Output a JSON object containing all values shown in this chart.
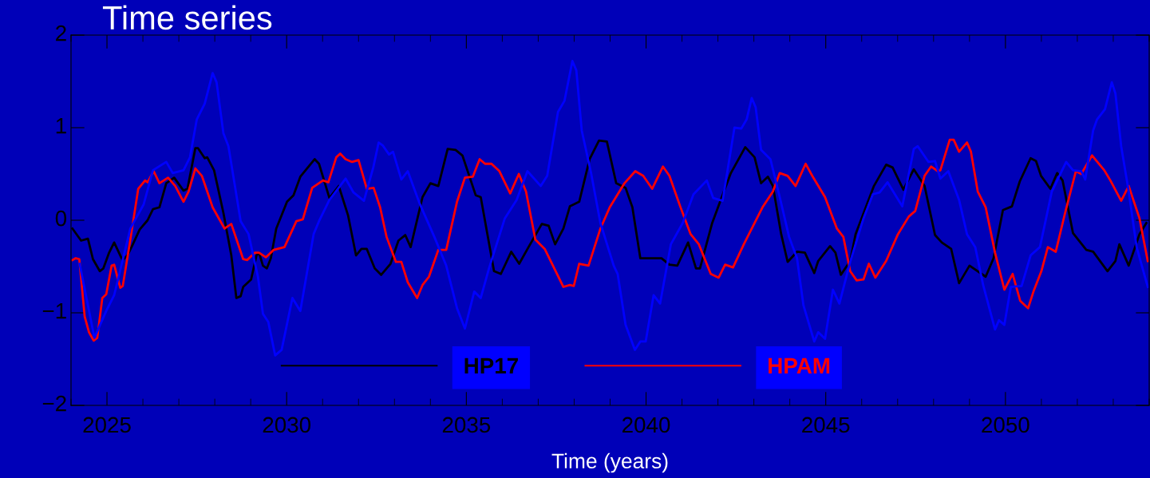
{
  "chart_data": {
    "type": "line",
    "title": "Time series",
    "xlabel": "Time (years)",
    "xlim": [
      2024,
      2054
    ],
    "ylim": [
      -2,
      2
    ],
    "xticks": [
      2025,
      2030,
      2035,
      2040,
      2045,
      2050
    ],
    "yticks": [
      -2,
      -1,
      0,
      1,
      2
    ],
    "legend": "bottom",
    "grid": false,
    "series": [
      {
        "name": "HP17",
        "color": "#000000",
        "x": [
          2024.04,
          2024.28,
          2024.47,
          2024.61,
          2024.8,
          2024.9,
          2025.06,
          2025.2,
          2025.43,
          2025.57,
          2025.72,
          2025.91,
          2026.13,
          2026.28,
          2026.46,
          2026.65,
          2026.87,
          2027.13,
          2027.24,
          2027.46,
          2027.53,
          2027.72,
          2027.79,
          2027.98,
          2028.24,
          2028.46,
          2028.6,
          2028.72,
          2028.79,
          2029.01,
          2029.16,
          2029.23,
          2029.34,
          2029.45,
          2029.56,
          2029.71,
          2030.01,
          2030.19,
          2030.38,
          2030.78,
          2030.9,
          2031.19,
          2031.45,
          2031.71,
          2031.93,
          2032.08,
          2032.23,
          2032.45,
          2032.63,
          2032.89,
          2033.11,
          2033.3,
          2033.45,
          2033.78,
          2034.0,
          2034.22,
          2034.48,
          2034.7,
          2034.89,
          2035.26,
          2035.4,
          2035.77,
          2035.96,
          2036.25,
          2036.47,
          2036.73,
          2037.1,
          2037.29,
          2037.47,
          2037.7,
          2037.88,
          2038.14,
          2038.43,
          2038.69,
          2038.91,
          2039.17,
          2039.43,
          2039.62,
          2039.84,
          2040.21,
          2040.43,
          2040.65,
          2040.87,
          2041.17,
          2041.39,
          2041.5,
          2041.84,
          2042.06,
          2042.36,
          2042.76,
          2043.02,
          2043.2,
          2043.39,
          2043.53,
          2043.76,
          2043.94,
          2044.2,
          2044.42,
          2044.68,
          2044.79,
          2045.12,
          2045.27,
          2045.42,
          2045.68,
          2045.83,
          2046.34,
          2046.68,
          2046.86,
          2047.16,
          2047.45,
          2047.75,
          2048.04,
          2048.23,
          2048.49,
          2048.71,
          2049.0,
          2049.45,
          2049.67,
          2049.93,
          2050.18,
          2050.4,
          2050.7,
          2050.85,
          2050.99,
          2051.25,
          2051.44,
          2051.59,
          2051.88,
          2052.25,
          2052.44,
          2052.84,
          2053.06,
          2053.17,
          2053.43,
          2053.73,
          2053.92
        ],
        "values": [
          -0.09,
          -0.22,
          -0.2,
          -0.42,
          -0.55,
          -0.52,
          -0.35,
          -0.24,
          -0.43,
          -0.38,
          -0.26,
          -0.1,
          0.0,
          0.12,
          0.14,
          0.4,
          0.46,
          0.32,
          0.34,
          0.78,
          0.78,
          0.67,
          0.68,
          0.54,
          0.08,
          -0.38,
          -0.84,
          -0.82,
          -0.72,
          -0.64,
          -0.38,
          -0.35,
          -0.49,
          -0.52,
          -0.41,
          -0.09,
          0.2,
          0.27,
          0.47,
          0.66,
          0.61,
          0.24,
          0.37,
          0.05,
          -0.38,
          -0.31,
          -0.31,
          -0.52,
          -0.59,
          -0.47,
          -0.22,
          -0.16,
          -0.29,
          0.25,
          0.4,
          0.37,
          0.77,
          0.76,
          0.7,
          0.27,
          0.25,
          -0.55,
          -0.58,
          -0.34,
          -0.47,
          -0.29,
          -0.04,
          -0.06,
          -0.26,
          -0.09,
          0.15,
          0.2,
          0.66,
          0.86,
          0.85,
          0.4,
          0.35,
          0.14,
          -0.41,
          -0.41,
          -0.41,
          -0.48,
          -0.49,
          -0.24,
          -0.52,
          -0.52,
          -0.03,
          0.2,
          0.51,
          0.79,
          0.68,
          0.4,
          0.47,
          0.37,
          -0.15,
          -0.45,
          -0.34,
          -0.35,
          -0.57,
          -0.44,
          -0.28,
          -0.35,
          -0.59,
          -0.44,
          -0.15,
          0.37,
          0.6,
          0.57,
          0.33,
          0.55,
          0.37,
          -0.16,
          -0.24,
          -0.31,
          -0.68,
          -0.49,
          -0.61,
          -0.41,
          0.11,
          0.15,
          0.42,
          0.67,
          0.64,
          0.48,
          0.34,
          0.51,
          0.43,
          -0.14,
          -0.32,
          -0.34,
          -0.55,
          -0.44,
          -0.26,
          -0.49,
          -0.15,
          -0.03
        ]
      },
      {
        "name": "HPAM",
        "color": "#ff0000",
        "x": [
          2024.04,
          2024.13,
          2024.23,
          2024.38,
          2024.5,
          2024.63,
          2024.73,
          2024.87,
          2024.98,
          2025.13,
          2025.2,
          2025.37,
          2025.44,
          2025.65,
          2025.87,
          2026.06,
          2026.13,
          2026.3,
          2026.46,
          2026.7,
          2026.9,
          2027.13,
          2027.27,
          2027.46,
          2027.64,
          2027.94,
          2028.27,
          2028.46,
          2028.79,
          2028.9,
          2029.12,
          2029.23,
          2029.42,
          2029.64,
          2029.94,
          2030.27,
          2030.45,
          2030.71,
          2031.01,
          2031.16,
          2031.38,
          2031.49,
          2031.64,
          2031.82,
          2032.0,
          2032.23,
          2032.42,
          2032.6,
          2032.78,
          2033.04,
          2033.19,
          2033.37,
          2033.63,
          2033.78,
          2033.96,
          2034.22,
          2034.44,
          2034.74,
          2034.96,
          2035.18,
          2035.37,
          2035.52,
          2035.7,
          2035.92,
          2036.22,
          2036.46,
          2036.66,
          2036.92,
          2037.18,
          2037.51,
          2037.7,
          2037.88,
          2037.99,
          2038.14,
          2038.4,
          2038.73,
          2038.99,
          2039.4,
          2039.7,
          2039.92,
          2040.17,
          2040.47,
          2040.65,
          2040.95,
          2041.24,
          2041.47,
          2041.8,
          2042.02,
          2042.2,
          2042.42,
          2042.72,
          2043.02,
          2043.24,
          2043.53,
          2043.72,
          2043.94,
          2044.16,
          2044.44,
          2044.64,
          2044.98,
          2045.31,
          2045.49,
          2045.68,
          2045.86,
          2046.05,
          2046.2,
          2046.38,
          2046.68,
          2047.01,
          2047.31,
          2047.49,
          2047.75,
          2047.93,
          2048.12,
          2048.19,
          2048.45,
          2048.56,
          2048.71,
          2048.93,
          2049.04,
          2049.23,
          2049.45,
          2049.71,
          2049.97,
          2050.2,
          2050.41,
          2050.63,
          2050.78,
          2051.0,
          2051.18,
          2051.4,
          2051.66,
          2051.96,
          2052.11,
          2052.41,
          2052.75,
          2052.92,
          2053.22,
          2053.43,
          2053.73,
          2053.96
        ],
        "values": [
          -0.43,
          -0.41,
          -0.42,
          -1.04,
          -1.21,
          -1.3,
          -1.27,
          -0.84,
          -0.8,
          -0.49,
          -0.48,
          -0.73,
          -0.71,
          -0.21,
          0.34,
          0.43,
          0.41,
          0.53,
          0.4,
          0.46,
          0.37,
          0.2,
          0.31,
          0.56,
          0.48,
          0.14,
          -0.09,
          -0.04,
          -0.42,
          -0.43,
          -0.35,
          -0.35,
          -0.4,
          -0.32,
          -0.29,
          -0.01,
          0.01,
          0.35,
          0.43,
          0.41,
          0.68,
          0.72,
          0.66,
          0.63,
          0.65,
          0.34,
          0.35,
          0.14,
          -0.18,
          -0.45,
          -0.45,
          -0.67,
          -0.84,
          -0.7,
          -0.61,
          -0.32,
          -0.32,
          0.2,
          0.46,
          0.47,
          0.66,
          0.61,
          0.61,
          0.53,
          0.29,
          0.5,
          0.31,
          -0.21,
          -0.31,
          -0.57,
          -0.72,
          -0.7,
          -0.71,
          -0.47,
          -0.49,
          -0.09,
          0.14,
          0.4,
          0.53,
          0.48,
          0.34,
          0.58,
          0.48,
          0.15,
          -0.15,
          -0.26,
          -0.58,
          -0.62,
          -0.48,
          -0.51,
          -0.26,
          -0.03,
          0.14,
          0.31,
          0.51,
          0.48,
          0.37,
          0.61,
          0.47,
          0.25,
          -0.09,
          -0.18,
          -0.55,
          -0.65,
          -0.64,
          -0.47,
          -0.62,
          -0.44,
          -0.15,
          0.04,
          0.1,
          0.48,
          0.58,
          0.53,
          0.54,
          0.87,
          0.87,
          0.74,
          0.84,
          0.74,
          0.31,
          0.14,
          -0.35,
          -0.75,
          -0.58,
          -0.87,
          -0.95,
          -0.77,
          -0.55,
          -0.29,
          -0.34,
          0.08,
          0.53,
          0.5,
          0.7,
          0.54,
          0.43,
          0.21,
          0.37,
          0.02,
          -0.44
        ]
      },
      {
        "color": "#0000ff",
        "x": [
          2024.24,
          2024.65,
          2024.98,
          2025.2,
          2025.65,
          2026.02,
          2026.28,
          2026.65,
          2026.83,
          2027.13,
          2027.31,
          2027.5,
          2027.72,
          2027.94,
          2028.05,
          2028.24,
          2028.38,
          2028.72,
          2028.94,
          2029.2,
          2029.34,
          2029.49,
          2029.68,
          2029.86,
          2030.16,
          2030.38,
          2030.75,
          2030.9,
          2031.19,
          2031.64,
          2031.86,
          2032.15,
          2032.41,
          2032.56,
          2032.67,
          2032.85,
          2032.96,
          2033.19,
          2033.37,
          2033.7,
          2034.11,
          2034.44,
          2034.74,
          2034.96,
          2035.22,
          2035.4,
          2035.63,
          2036.07,
          2036.4,
          2036.7,
          2037.07,
          2037.25,
          2037.55,
          2037.73,
          2037.95,
          2038.06,
          2038.21,
          2038.47,
          2038.73,
          2039.1,
          2039.21,
          2039.43,
          2039.69,
          2039.84,
          2039.99,
          2040.21,
          2040.39,
          2040.69,
          2041.02,
          2041.32,
          2041.69,
          2041.87,
          2042.13,
          2042.46,
          2042.65,
          2042.8,
          2042.94,
          2043.05,
          2043.2,
          2043.46,
          2043.72,
          2043.98,
          2044.2,
          2044.38,
          2044.68,
          2044.79,
          2044.98,
          2045.2,
          2045.38,
          2045.68,
          2046.05,
          2046.31,
          2046.5,
          2046.72,
          2047.13,
          2047.45,
          2047.56,
          2047.86,
          2048.04,
          2048.19,
          2048.41,
          2048.71,
          2048.93,
          2049.16,
          2049.38,
          2049.71,
          2049.82,
          2049.97,
          2050.15,
          2050.45,
          2050.7,
          2050.96,
          2051.29,
          2051.69,
          2051.88,
          2052.11,
          2052.22,
          2052.44,
          2052.55,
          2052.77,
          2052.96,
          2053.06,
          2053.22,
          2053.43,
          2053.65,
          2053.96
        ],
        "values": [
          -0.47,
          -1.27,
          -0.98,
          -0.81,
          -0.09,
          0.17,
          0.54,
          0.63,
          0.51,
          0.54,
          0.68,
          1.09,
          1.26,
          1.59,
          1.49,
          0.94,
          0.8,
          -0.01,
          -0.15,
          -0.61,
          -1.01,
          -1.1,
          -1.46,
          -1.4,
          -0.84,
          -0.98,
          -0.15,
          -0.01,
          0.22,
          0.45,
          0.3,
          0.21,
          0.57,
          0.84,
          0.81,
          0.71,
          0.74,
          0.44,
          0.53,
          0.18,
          -0.18,
          -0.49,
          -0.95,
          -1.17,
          -0.77,
          -0.84,
          -0.52,
          0.02,
          0.22,
          0.53,
          0.37,
          0.48,
          1.17,
          1.29,
          1.72,
          1.62,
          0.97,
          0.51,
          -0.03,
          -0.49,
          -0.58,
          -1.13,
          -1.4,
          -1.31,
          -1.31,
          -0.81,
          -0.9,
          -0.26,
          -0.03,
          0.28,
          0.43,
          0.24,
          0.21,
          1.0,
          0.99,
          1.09,
          1.32,
          1.22,
          0.76,
          0.66,
          0.25,
          -0.18,
          -0.41,
          -0.92,
          -1.31,
          -1.21,
          -1.28,
          -0.75,
          -0.9,
          -0.45,
          0.02,
          0.28,
          0.3,
          0.41,
          0.15,
          0.77,
          0.8,
          0.63,
          0.64,
          0.45,
          0.53,
          0.22,
          -0.15,
          -0.29,
          -0.7,
          -1.18,
          -1.08,
          -1.13,
          -0.72,
          -0.71,
          -0.38,
          -0.29,
          0.31,
          0.63,
          0.54,
          0.53,
          0.44,
          0.97,
          1.09,
          1.2,
          1.49,
          1.37,
          0.8,
          0.31,
          -0.29,
          -0.72
        ]
      }
    ]
  }
}
